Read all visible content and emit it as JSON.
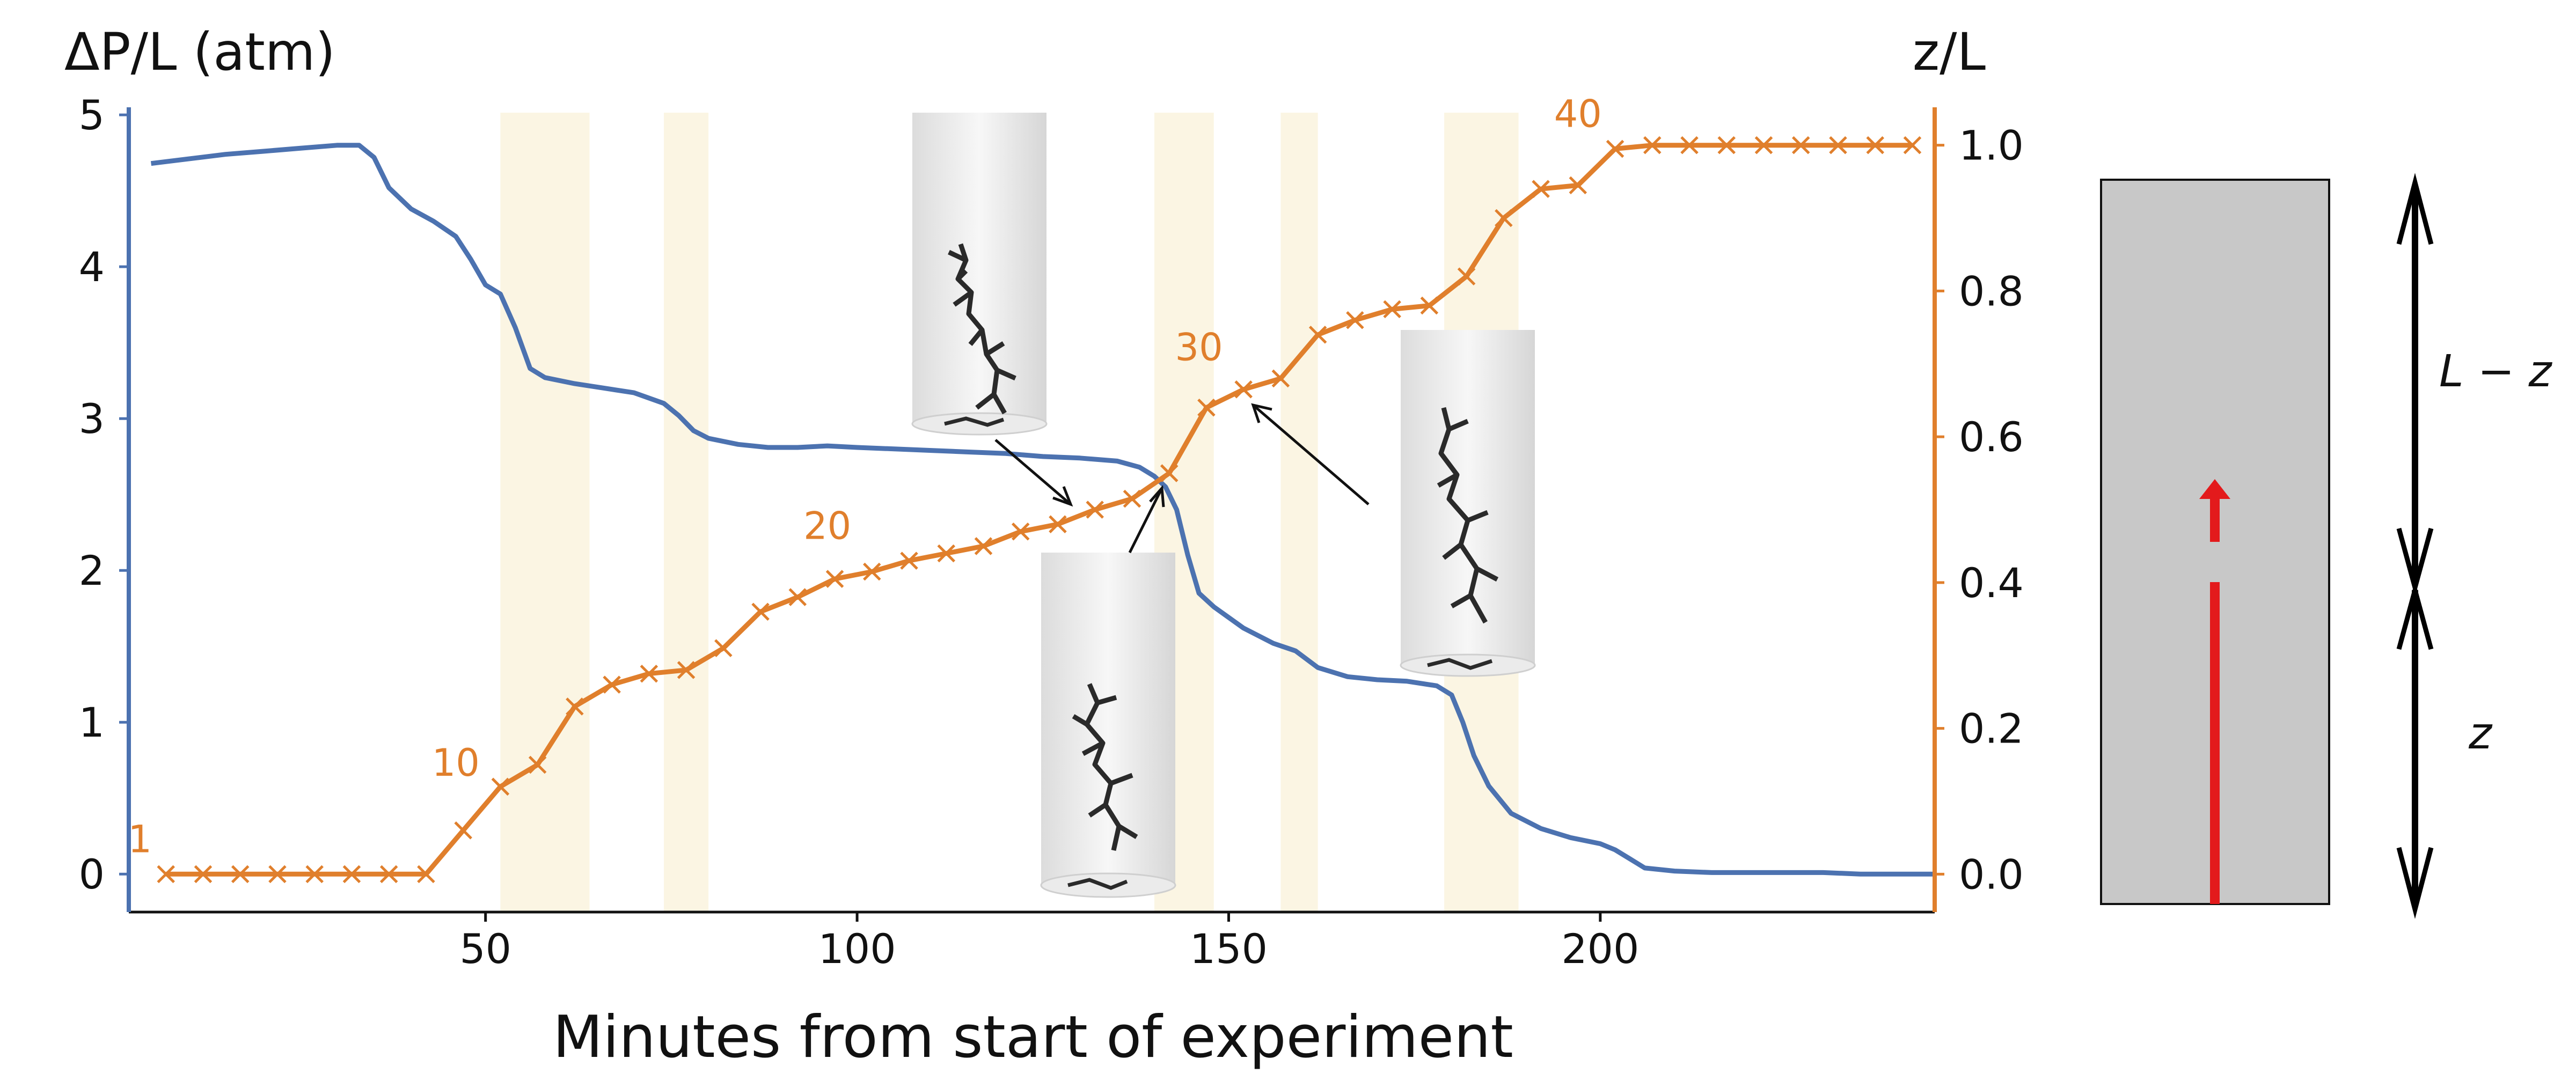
{
  "colors": {
    "pressure": "#4c72b0",
    "front": "#e07f2c",
    "band": "#fbf5e3",
    "sample": "#c8c8c8",
    "arrow_red": "#e31a1c"
  },
  "chart_data": {
    "type": "line",
    "xlabel": "Minutes from start of experiment",
    "ylabel_left": "ΔP/L (atm)",
    "ylabel_right": "z/L",
    "xlim": [
      2,
      245
    ],
    "ylim_left": [
      -0.25,
      5.05
    ],
    "ylim_right": [
      -0.052,
      1.052
    ],
    "x_ticks": [
      50,
      100,
      150,
      200
    ],
    "x_tick_labels": [
      "50",
      "100",
      "150",
      "200"
    ],
    "y_left_ticks": [
      0,
      1,
      2,
      3,
      4,
      5
    ],
    "y_left_tick_labels": [
      "0",
      "1",
      "2",
      "3",
      "4",
      "5"
    ],
    "y_right_ticks": [
      0.0,
      0.2,
      0.4,
      0.6,
      0.8,
      1.0
    ],
    "y_right_tick_labels": [
      "0.0",
      "0.2",
      "0.4",
      "0.6",
      "0.8",
      "1.0"
    ],
    "highlight_bands": [
      [
        52,
        64
      ],
      [
        74,
        80
      ],
      [
        140,
        148
      ],
      [
        157,
        162
      ],
      [
        179,
        189
      ]
    ],
    "series": [
      {
        "axis": "left",
        "style": "line",
        "x": [
          5,
          10,
          15,
          20,
          25,
          30,
          33,
          35,
          37,
          40,
          43,
          46,
          48,
          50,
          52,
          54,
          56,
          58,
          62,
          66,
          70,
          74,
          76,
          78,
          80,
          84,
          88,
          92,
          96,
          100,
          105,
          110,
          115,
          120,
          125,
          130,
          135,
          138,
          140,
          141.5,
          143,
          144.5,
          146,
          148,
          152,
          156,
          159,
          162,
          166,
          170,
          174,
          178,
          180,
          181.5,
          183,
          185,
          188,
          192,
          196,
          200,
          202,
          204,
          206,
          210,
          215,
          220,
          225,
          230,
          235,
          240,
          245
        ],
        "y": [
          4.68,
          4.71,
          4.74,
          4.76,
          4.78,
          4.8,
          4.8,
          4.72,
          4.52,
          4.38,
          4.3,
          4.2,
          4.05,
          3.88,
          3.82,
          3.6,
          3.33,
          3.27,
          3.23,
          3.2,
          3.17,
          3.1,
          3.02,
          2.92,
          2.87,
          2.83,
          2.81,
          2.81,
          2.82,
          2.81,
          2.8,
          2.79,
          2.78,
          2.77,
          2.75,
          2.74,
          2.72,
          2.68,
          2.62,
          2.55,
          2.4,
          2.1,
          1.85,
          1.76,
          1.62,
          1.52,
          1.47,
          1.36,
          1.3,
          1.28,
          1.27,
          1.24,
          1.18,
          1.0,
          0.78,
          0.58,
          0.4,
          0.3,
          0.24,
          0.2,
          0.16,
          0.1,
          0.04,
          0.02,
          0.01,
          0.01,
          0.01,
          0.01,
          0.0,
          0.0,
          0.0
        ]
      },
      {
        "axis": "right",
        "style": "line-x-markers",
        "x": [
          7,
          12,
          17,
          22,
          27,
          32,
          37,
          42,
          47,
          52,
          57,
          62,
          67,
          72,
          77,
          82,
          87,
          92,
          97,
          102,
          107,
          112,
          117,
          122,
          127,
          132,
          137,
          142,
          147,
          152,
          157,
          162,
          167,
          172,
          177,
          182,
          187,
          192,
          197,
          202,
          207,
          212,
          217,
          222,
          227,
          232,
          237,
          242
        ],
        "y": [
          0.0,
          0.0,
          0.0,
          0.0,
          0.0,
          0.0,
          0.0,
          0.0,
          0.06,
          0.12,
          0.15,
          0.23,
          0.26,
          0.275,
          0.28,
          0.31,
          0.36,
          0.38,
          0.405,
          0.415,
          0.43,
          0.44,
          0.45,
          0.47,
          0.48,
          0.5,
          0.515,
          0.55,
          0.64,
          0.665,
          0.68,
          0.74,
          0.76,
          0.775,
          0.78,
          0.82,
          0.9,
          0.94,
          0.945,
          0.995,
          1.0,
          1.0,
          1.0,
          1.0,
          1.0,
          1.0,
          1.0,
          1.0
        ]
      }
    ],
    "annotations": [
      {
        "text": "1",
        "x": 3.5,
        "y": 0.03
      },
      {
        "text": "10",
        "x": 46,
        "y": 0.135
      },
      {
        "text": "20",
        "x": 96,
        "y": 0.46
      },
      {
        "text": "30",
        "x": 146,
        "y": 0.705
      },
      {
        "text": "40",
        "x": 197,
        "y": 1.025
      }
    ]
  },
  "diagram": {
    "label_upper": "L − z",
    "label_lower": "z"
  }
}
